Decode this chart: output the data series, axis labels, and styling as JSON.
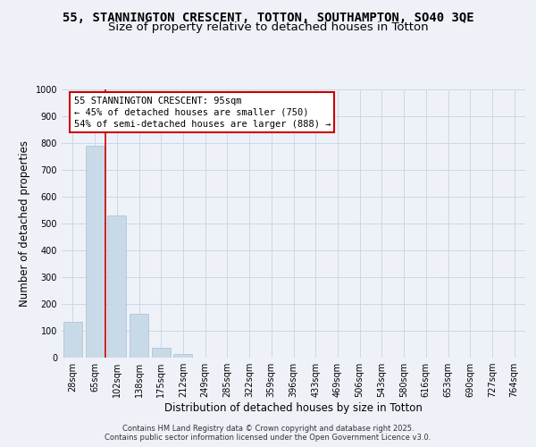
{
  "title_line1": "55, STANNINGTON CRESCENT, TOTTON, SOUTHAMPTON, SO40 3QE",
  "title_line2": "Size of property relative to detached houses in Totton",
  "xlabel": "Distribution of detached houses by size in Totton",
  "ylabel": "Number of detached properties",
  "categories": [
    "28sqm",
    "65sqm",
    "102sqm",
    "138sqm",
    "175sqm",
    "212sqm",
    "249sqm",
    "285sqm",
    "322sqm",
    "359sqm",
    "396sqm",
    "433sqm",
    "469sqm",
    "506sqm",
    "543sqm",
    "580sqm",
    "616sqm",
    "653sqm",
    "690sqm",
    "727sqm",
    "764sqm"
  ],
  "values": [
    135,
    790,
    530,
    162,
    38,
    12,
    0,
    0,
    0,
    0,
    0,
    0,
    0,
    0,
    0,
    0,
    0,
    0,
    0,
    0,
    0
  ],
  "bar_color": "#c8d9e8",
  "bar_edge_color": "#aabfcf",
  "grid_color": "#c8d8e8",
  "background_color": "#eef2f8",
  "vline_x_index": 1.5,
  "vline_color": "#cc0000",
  "annotation_text": "55 STANNINGTON CRESCENT: 95sqm\n← 45% of detached houses are smaller (750)\n54% of semi-detached houses are larger (888) →",
  "annotation_box_color": "#ffffff",
  "annotation_border_color": "#cc0000",
  "ylim": [
    0,
    1000
  ],
  "yticks": [
    0,
    100,
    200,
    300,
    400,
    500,
    600,
    700,
    800,
    900,
    1000
  ],
  "footer_line1": "Contains HM Land Registry data © Crown copyright and database right 2025.",
  "footer_line2": "Contains public sector information licensed under the Open Government Licence v3.0.",
  "title_fontsize": 10,
  "subtitle_fontsize": 9.5,
  "tick_fontsize": 7,
  "label_fontsize": 8.5,
  "footer_fontsize": 6,
  "annot_fontsize": 7.5
}
